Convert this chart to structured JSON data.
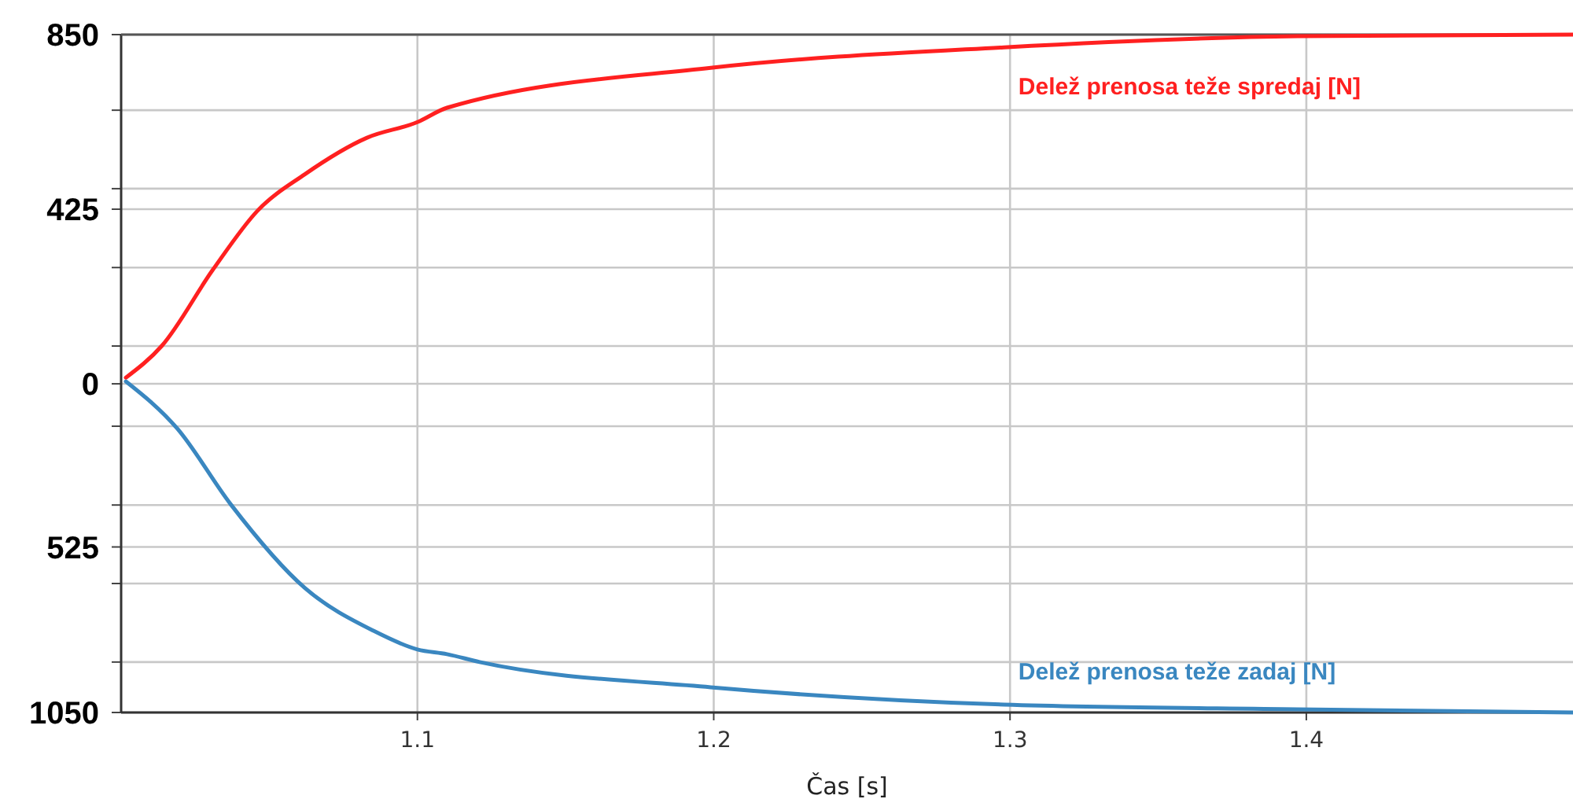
{
  "chart_data": {
    "type": "line",
    "xlabel": "Čas [s]",
    "xlim": [
      1.0,
      1.49
    ],
    "xticks": [
      1.1,
      1.2,
      1.3,
      1.4
    ],
    "ylim": [
      -800,
      850
    ],
    "yticks": [
      0,
      {
        "value": 92,
        "label": null
      },
      {
        "value": 283,
        "label": null
      },
      425,
      {
        "value": 475,
        "label": null
      },
      {
        "value": 666,
        "label": null
      },
      850
    ],
    "y2lim": [
      1050,
      -1100
    ],
    "y2ticks": [
      {
        "value": 142,
        "label": null
      },
      {
        "value": 392,
        "label": null
      },
      525,
      {
        "value": 641,
        "label": null
      },
      {
        "value": 890,
        "label": null
      },
      1050
    ],
    "grid": true,
    "line_style": "solid",
    "series": [
      {
        "name": "Delež prenosa teže spredaj [N]",
        "color": "#ff2020",
        "x": [
          1.0016,
          1.0138,
          1.031,
          1.046,
          1.062,
          1.083,
          1.1,
          1.11,
          1.199,
          1.298,
          1.397,
          1.49
        ],
        "values": [
          15,
          93,
          278,
          421,
          510,
          599,
          637,
          672,
          769,
          819,
          846,
          850
        ]
      },
      {
        "name": "Delež prenosa teže zadaj [N]",
        "color": "#3a87c0",
        "axis": "y2",
        "x": [
          1.0016,
          1.019,
          1.037,
          1.062,
          1.085,
          1.1,
          1.11,
          1.121,
          1.199,
          1.298,
          1.397,
          1.49
        ],
        "values": [
          0,
          150,
          390,
          655,
          790,
          850,
          865,
          890,
          970,
          1025,
          1040,
          1050
        ]
      }
    ]
  }
}
